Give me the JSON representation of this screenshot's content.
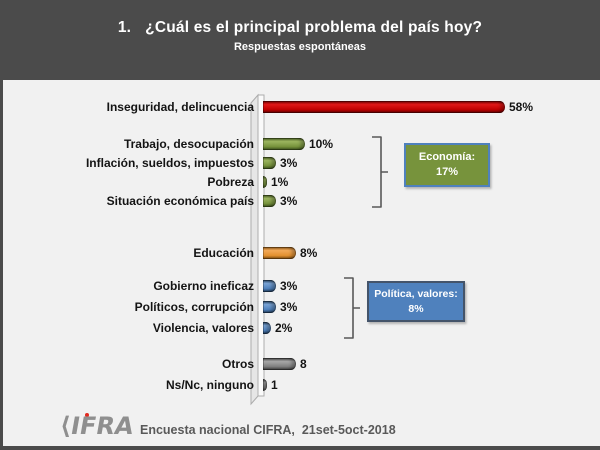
{
  "header": {
    "title_number": "1.",
    "title": "¿Cuál es el principal problema del país hoy?",
    "subtitle": "Respuestas espontáneas"
  },
  "chart_data": {
    "type": "bar",
    "orientation": "horizontal",
    "title": "¿Cuál es el principal problema del país hoy?",
    "subtitle": "Respuestas espontáneas",
    "xlim": [
      0,
      60
    ],
    "value_suffix": "%",
    "grid": false,
    "rows": [
      {
        "label": "Inseguridad, delincuencia",
        "value": 58,
        "display": "58%",
        "color": "red",
        "group": null
      },
      {
        "label": "Trabajo, desocupación",
        "value": 10,
        "display": "10%",
        "color": "green",
        "group": "economia"
      },
      {
        "label": "Inflación, sueldos, impuestos",
        "value": 3,
        "display": "3%",
        "color": "green",
        "group": "economia"
      },
      {
        "label": "Pobreza",
        "value": 1,
        "display": "1%",
        "color": "green",
        "group": "economia"
      },
      {
        "label": "Situación económica país",
        "value": 3,
        "display": "3%",
        "color": "green",
        "group": "economia"
      },
      {
        "label": "Educación",
        "value": 8,
        "display": "8%",
        "color": "orange",
        "group": null
      },
      {
        "label": "Gobierno ineficaz",
        "value": 3,
        "display": "3%",
        "color": "blue",
        "group": "politica"
      },
      {
        "label": "Políticos, corrupción",
        "value": 3,
        "display": "3%",
        "color": "blue",
        "group": "politica"
      },
      {
        "label": "Violencia, valores",
        "value": 2,
        "display": "2%",
        "color": "blue",
        "group": "politica"
      },
      {
        "label": "Otros",
        "value": 8,
        "display": "8",
        "color": "gray",
        "group": null
      },
      {
        "label": "Ns/Nc, ninguno",
        "value": 1,
        "display": "1",
        "color": "gray",
        "group": null
      }
    ],
    "groups": [
      {
        "id": "economia",
        "label": "Economía:",
        "value_label": "17%",
        "fill": "#77933c",
        "border": "#4f81bd"
      },
      {
        "id": "politica",
        "label": "Política, valores:",
        "value_label": "8%",
        "fill": "#4f81bd",
        "border": "#44546a"
      }
    ]
  },
  "footer": {
    "logo_bracket": "⟨",
    "logo_letters": "IFRA",
    "caption": "Encuesta nacional CIFRA,  21set-5oct-2018"
  },
  "colors": {
    "header_bg": "#4b4b4b",
    "background": "#f1f1f1",
    "bar_red": "#c00000",
    "bar_green": "#77933c",
    "bar_orange": "#e2902f",
    "bar_blue": "#4f81bd",
    "bar_gray": "#7f7f7f",
    "bracket": "#595959",
    "text": "#141414",
    "footer_text": "#595959",
    "logo_red_dot": "#e0281e"
  }
}
